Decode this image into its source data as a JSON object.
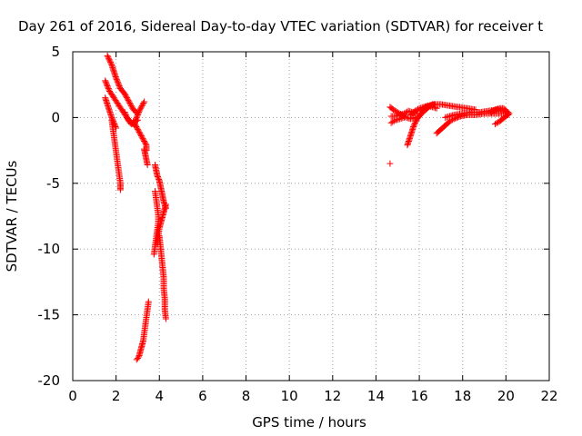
{
  "chart_data": {
    "type": "scatter",
    "title": "Day 261 of 2016, Sidereal Day-to-day VTEC variation (SDTVAR) for receiver t",
    "xlabel": "GPS time / hours",
    "ylabel": "SDTVAR / TECUs",
    "xlim": [
      0,
      22
    ],
    "ylim": [
      -20,
      5
    ],
    "xticks": [
      "0",
      "2",
      "4",
      "6",
      "8",
      "10",
      "12",
      "14",
      "16",
      "18",
      "20",
      "22"
    ],
    "yticks": [
      "5",
      "0",
      "-5",
      "-10",
      "-15",
      "-20"
    ],
    "grid": true,
    "marker": "+",
    "color": "#ff0000",
    "segments": [
      [
        [
          1.6,
          4.7
        ],
        [
          1.8,
          4.0
        ],
        [
          2.0,
          3.0
        ],
        [
          2.2,
          2.2
        ],
        [
          2.4,
          1.8
        ],
        [
          2.6,
          1.2
        ],
        [
          2.8,
          0.6
        ],
        [
          3.0,
          0.3
        ]
      ],
      [
        [
          1.5,
          2.8
        ],
        [
          1.7,
          2.0
        ],
        [
          1.9,
          1.5
        ],
        [
          2.1,
          1.0
        ],
        [
          2.3,
          0.5
        ],
        [
          2.5,
          0.0
        ],
        [
          2.7,
          -0.4
        ],
        [
          2.9,
          -0.6
        ]
      ],
      [
        [
          1.5,
          1.5
        ],
        [
          1.6,
          1.0
        ],
        [
          1.7,
          0.5
        ],
        [
          1.8,
          0.0
        ],
        [
          1.9,
          -0.4
        ],
        [
          2.0,
          -0.8
        ]
      ],
      [
        [
          2.4,
          0.4
        ],
        [
          2.5,
          0.0
        ],
        [
          2.6,
          -0.3
        ],
        [
          2.7,
          -0.5
        ],
        [
          2.8,
          -0.4
        ],
        [
          3.0,
          -0.2
        ]
      ],
      [
        [
          2.9,
          -0.2
        ],
        [
          3.0,
          0.2
        ],
        [
          3.1,
          0.6
        ],
        [
          3.2,
          0.9
        ],
        [
          3.3,
          1.2
        ]
      ],
      [
        [
          2.8,
          -0.3
        ],
        [
          2.9,
          -0.6
        ],
        [
          3.0,
          -0.9
        ],
        [
          3.1,
          -1.2
        ],
        [
          3.2,
          -1.5
        ],
        [
          3.3,
          -1.8
        ],
        [
          3.4,
          -2.1
        ],
        [
          3.4,
          -2.5
        ]
      ],
      [
        [
          1.8,
          -0.2
        ],
        [
          1.85,
          -0.8
        ],
        [
          1.9,
          -1.4
        ],
        [
          1.95,
          -2.0
        ],
        [
          2.0,
          -2.6
        ],
        [
          2.05,
          -3.2
        ],
        [
          2.1,
          -3.8
        ],
        [
          2.15,
          -4.4
        ],
        [
          2.2,
          -5.0
        ],
        [
          2.2,
          -5.5
        ]
      ],
      [
        [
          3.3,
          -2.4
        ],
        [
          3.35,
          -2.8
        ],
        [
          3.4,
          -3.2
        ],
        [
          3.45,
          -3.6
        ]
      ],
      [
        [
          3.8,
          -3.6
        ],
        [
          3.85,
          -4.0
        ],
        [
          3.9,
          -4.4
        ],
        [
          4.0,
          -4.8
        ],
        [
          4.05,
          -5.2
        ],
        [
          4.1,
          -5.6
        ],
        [
          4.15,
          -6.0
        ],
        [
          4.2,
          -6.4
        ],
        [
          4.3,
          -6.9
        ]
      ],
      [
        [
          3.8,
          -5.6
        ],
        [
          3.85,
          -6.2
        ],
        [
          3.9,
          -6.8
        ],
        [
          3.95,
          -7.4
        ],
        [
          3.95,
          -8.0
        ],
        [
          3.9,
          -8.6
        ],
        [
          3.85,
          -9.2
        ],
        [
          3.8,
          -9.8
        ],
        [
          3.75,
          -10.4
        ]
      ],
      [
        [
          4.3,
          -6.6
        ],
        [
          4.2,
          -7.2
        ],
        [
          4.1,
          -7.8
        ],
        [
          4.0,
          -8.4
        ],
        [
          3.95,
          -9.0
        ],
        [
          3.9,
          -9.6
        ]
      ],
      [
        [
          4.0,
          -9.0
        ],
        [
          4.05,
          -9.8
        ],
        [
          4.1,
          -10.6
        ],
        [
          4.15,
          -11.4
        ],
        [
          4.2,
          -12.2
        ],
        [
          4.2,
          -13.0
        ],
        [
          4.25,
          -13.8
        ],
        [
          4.25,
          -14.6
        ],
        [
          4.3,
          -15.3
        ]
      ],
      [
        [
          3.5,
          -14.0
        ],
        [
          3.45,
          -14.6
        ],
        [
          3.4,
          -15.2
        ],
        [
          3.35,
          -15.8
        ],
        [
          3.3,
          -16.4
        ],
        [
          3.25,
          -17.0
        ],
        [
          3.15,
          -17.6
        ],
        [
          3.05,
          -18.2
        ],
        [
          2.95,
          -18.4
        ]
      ],
      [
        [
          14.65,
          0.8
        ],
        [
          14.8,
          0.6
        ],
        [
          15.0,
          0.4
        ],
        [
          15.2,
          0.2
        ],
        [
          15.4,
          0.0
        ],
        [
          15.6,
          -0.1
        ],
        [
          15.8,
          0.0
        ]
      ],
      [
        [
          14.7,
          0.1
        ],
        [
          14.9,
          0.1
        ],
        [
          15.1,
          0.2
        ],
        [
          15.3,
          0.3
        ],
        [
          15.5,
          0.5
        ],
        [
          15.7,
          0.4
        ],
        [
          15.9,
          0.3
        ]
      ],
      [
        [
          14.7,
          -0.4
        ],
        [
          14.9,
          -0.2
        ],
        [
          15.1,
          -0.1
        ],
        [
          15.3,
          0.0
        ]
      ],
      [
        [
          15.45,
          -2.1
        ],
        [
          15.55,
          -1.6
        ],
        [
          15.65,
          -1.1
        ],
        [
          15.75,
          -0.6
        ],
        [
          15.9,
          -0.1
        ],
        [
          16.1,
          0.3
        ],
        [
          16.3,
          0.6
        ],
        [
          16.5,
          0.9
        ],
        [
          16.7,
          1.0
        ]
      ],
      [
        [
          15.6,
          0.2
        ],
        [
          15.8,
          0.5
        ],
        [
          16.0,
          0.7
        ],
        [
          16.2,
          0.8
        ],
        [
          16.4,
          0.9
        ],
        [
          16.6,
          0.8
        ],
        [
          16.8,
          0.7
        ]
      ],
      [
        [
          16.0,
          0.5
        ],
        [
          16.3,
          0.8
        ],
        [
          16.6,
          1.0
        ],
        [
          17.0,
          1.0
        ],
        [
          17.4,
          0.9
        ],
        [
          17.8,
          0.8
        ],
        [
          18.2,
          0.7
        ],
        [
          18.6,
          0.6
        ]
      ],
      [
        [
          16.8,
          -1.2
        ],
        [
          17.0,
          -0.9
        ],
        [
          17.2,
          -0.6
        ],
        [
          17.4,
          -0.3
        ],
        [
          17.6,
          -0.1
        ],
        [
          17.9,
          0.1
        ],
        [
          18.2,
          0.2
        ],
        [
          18.6,
          0.2
        ],
        [
          19.0,
          0.3
        ],
        [
          19.4,
          0.3
        ],
        [
          19.8,
          0.3
        ],
        [
          20.1,
          0.3
        ]
      ],
      [
        [
          17.2,
          0.0
        ],
        [
          17.6,
          0.2
        ],
        [
          18.0,
          0.3
        ],
        [
          18.4,
          0.4
        ],
        [
          18.8,
          0.4
        ],
        [
          19.2,
          0.5
        ],
        [
          19.6,
          0.6
        ],
        [
          19.9,
          0.6
        ],
        [
          20.1,
          0.4
        ]
      ],
      [
        [
          19.3,
          0.4
        ],
        [
          19.5,
          0.6
        ],
        [
          19.7,
          0.7
        ],
        [
          19.9,
          0.7
        ],
        [
          20.0,
          0.5
        ],
        [
          20.1,
          0.2
        ]
      ],
      [
        [
          19.5,
          -0.5
        ],
        [
          19.7,
          -0.3
        ],
        [
          19.85,
          -0.1
        ],
        [
          20.0,
          0.1
        ],
        [
          20.15,
          0.3
        ]
      ],
      [
        [
          14.65,
          -3.5
        ]
      ]
    ]
  }
}
